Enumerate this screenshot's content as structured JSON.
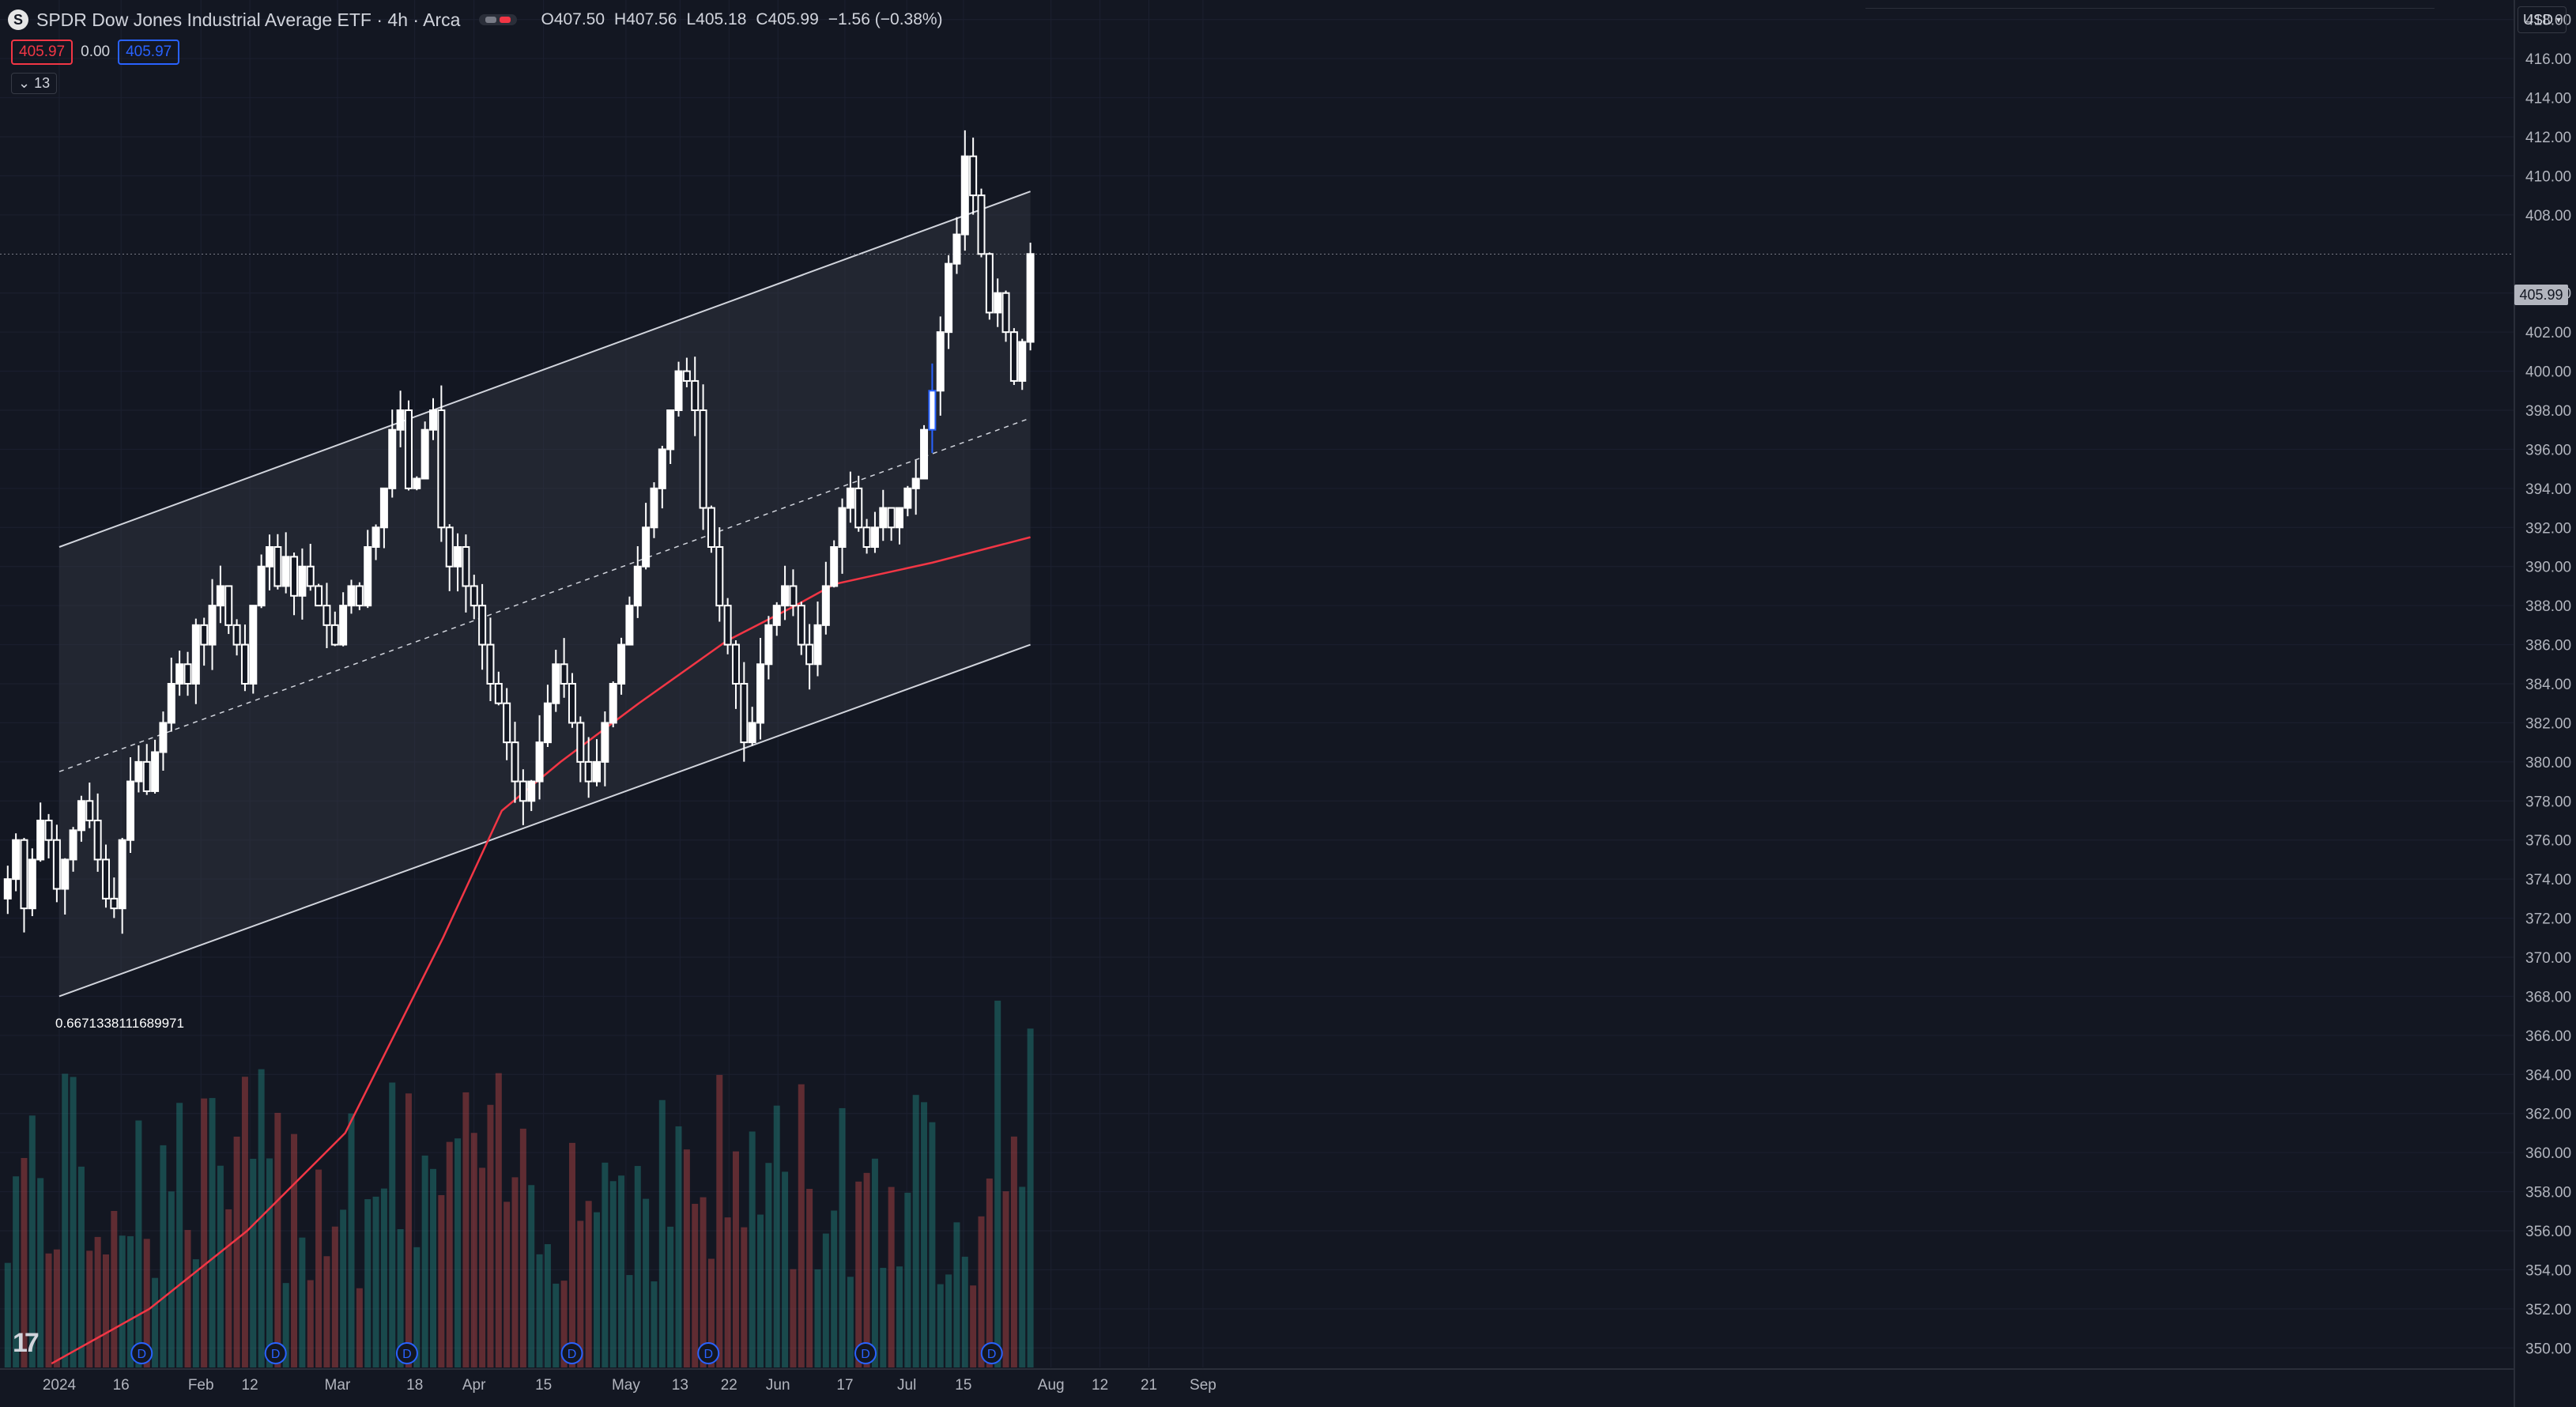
{
  "header": {
    "symbol_icon": "S",
    "title": "SPDR Dow Jones Industrial Average ETF · 4h · Arca",
    "ohlc": {
      "o_label": "O",
      "o": "407.50",
      "h_label": "H",
      "h": "407.56",
      "l_label": "L",
      "l": "405.18",
      "c_label": "C",
      "c": "405.99",
      "change": "−1.56 (−0.38%)"
    },
    "price_boxes": {
      "bid": "405.97",
      "spread": "0.00",
      "ask": "405.97"
    },
    "collapse_count": "13",
    "currency": "USD"
  },
  "price_axis": {
    "labels": [
      "418.00",
      "416.00",
      "414.00",
      "412.00",
      "410.00",
      "408.00",
      "404.00",
      "402.00",
      "400.00",
      "398.00",
      "396.00",
      "394.00",
      "392.00",
      "390.00",
      "388.00",
      "386.00",
      "384.00",
      "382.00",
      "380.00",
      "378.00",
      "376.00",
      "374.00",
      "372.00",
      "370.00",
      "368.00",
      "366.00",
      "364.00",
      "362.00",
      "360.00",
      "358.00",
      "356.00",
      "354.00",
      "352.00",
      "350.00"
    ],
    "last_price": "405.99"
  },
  "time_axis": {
    "labels": [
      "2024",
      "16",
      "Feb",
      "12",
      "Mar",
      "18",
      "Apr",
      "15",
      "May",
      "13",
      "22",
      "Jun",
      "17",
      "Jul",
      "15",
      "Aug",
      "12",
      "21",
      "Sep"
    ]
  },
  "overlay": {
    "coefficient": "0.6671338111689971",
    "dividend_marker": "D"
  },
  "colors": {
    "background": "#131722",
    "candle_up": "#ffffff",
    "candle_down": "#ffffff",
    "last_candle": "#2962ff",
    "ma_line": "#f23645",
    "volume_up": "#26a69a",
    "volume_down": "#ef5350",
    "channel_fill": "#363a45"
  },
  "chart_data": {
    "type": "candlestick",
    "interval": "4h",
    "price_range": [
      349,
      419
    ],
    "trend_channel": {
      "upper": [
        391,
        409.2
      ],
      "middle": [
        379.5,
        397.6
      ],
      "lower": [
        368,
        386
      ]
    },
    "ma_line": [
      [
        0,
        349.2
      ],
      [
        0.1,
        352
      ],
      [
        0.2,
        356
      ],
      [
        0.3,
        361
      ],
      [
        0.35,
        366
      ],
      [
        0.4,
        371
      ],
      [
        0.46,
        377.5
      ],
      [
        0.52,
        380
      ],
      [
        0.6,
        383
      ],
      [
        0.69,
        386.2
      ],
      [
        0.76,
        388
      ],
      [
        0.8,
        389.1
      ],
      [
        0.9,
        390.2
      ],
      [
        1.0,
        391.5
      ]
    ],
    "closes": [
      374,
      376,
      372.5,
      375,
      377,
      376,
      373.5,
      375,
      376.5,
      378,
      377,
      375,
      373,
      372.5,
      376,
      379,
      380,
      378.5,
      380.5,
      382,
      384,
      385,
      384,
      387,
      386,
      388,
      389,
      387,
      386,
      384,
      388,
      390,
      391,
      389,
      390.5,
      388.5,
      390,
      389,
      388,
      387,
      386,
      388,
      389,
      388,
      391,
      392,
      394,
      397,
      398,
      394,
      394.5,
      397,
      398,
      392,
      390,
      391,
      389,
      388,
      386,
      384,
      383,
      381,
      379,
      378,
      379,
      381,
      383,
      385,
      384,
      382,
      380,
      379,
      380,
      382,
      384,
      386,
      388,
      390,
      392,
      394,
      396,
      398,
      400,
      399.5,
      398,
      393,
      391,
      388,
      386,
      384,
      381,
      382,
      385,
      387,
      388,
      389,
      388,
      386,
      385,
      387,
      389,
      391,
      393,
      394,
      392,
      391,
      392,
      393,
      392,
      393,
      394,
      394.5,
      397,
      399,
      402,
      405.5,
      407,
      411,
      409,
      406,
      403,
      404,
      402,
      399.5,
      401.5,
      406
    ]
  }
}
